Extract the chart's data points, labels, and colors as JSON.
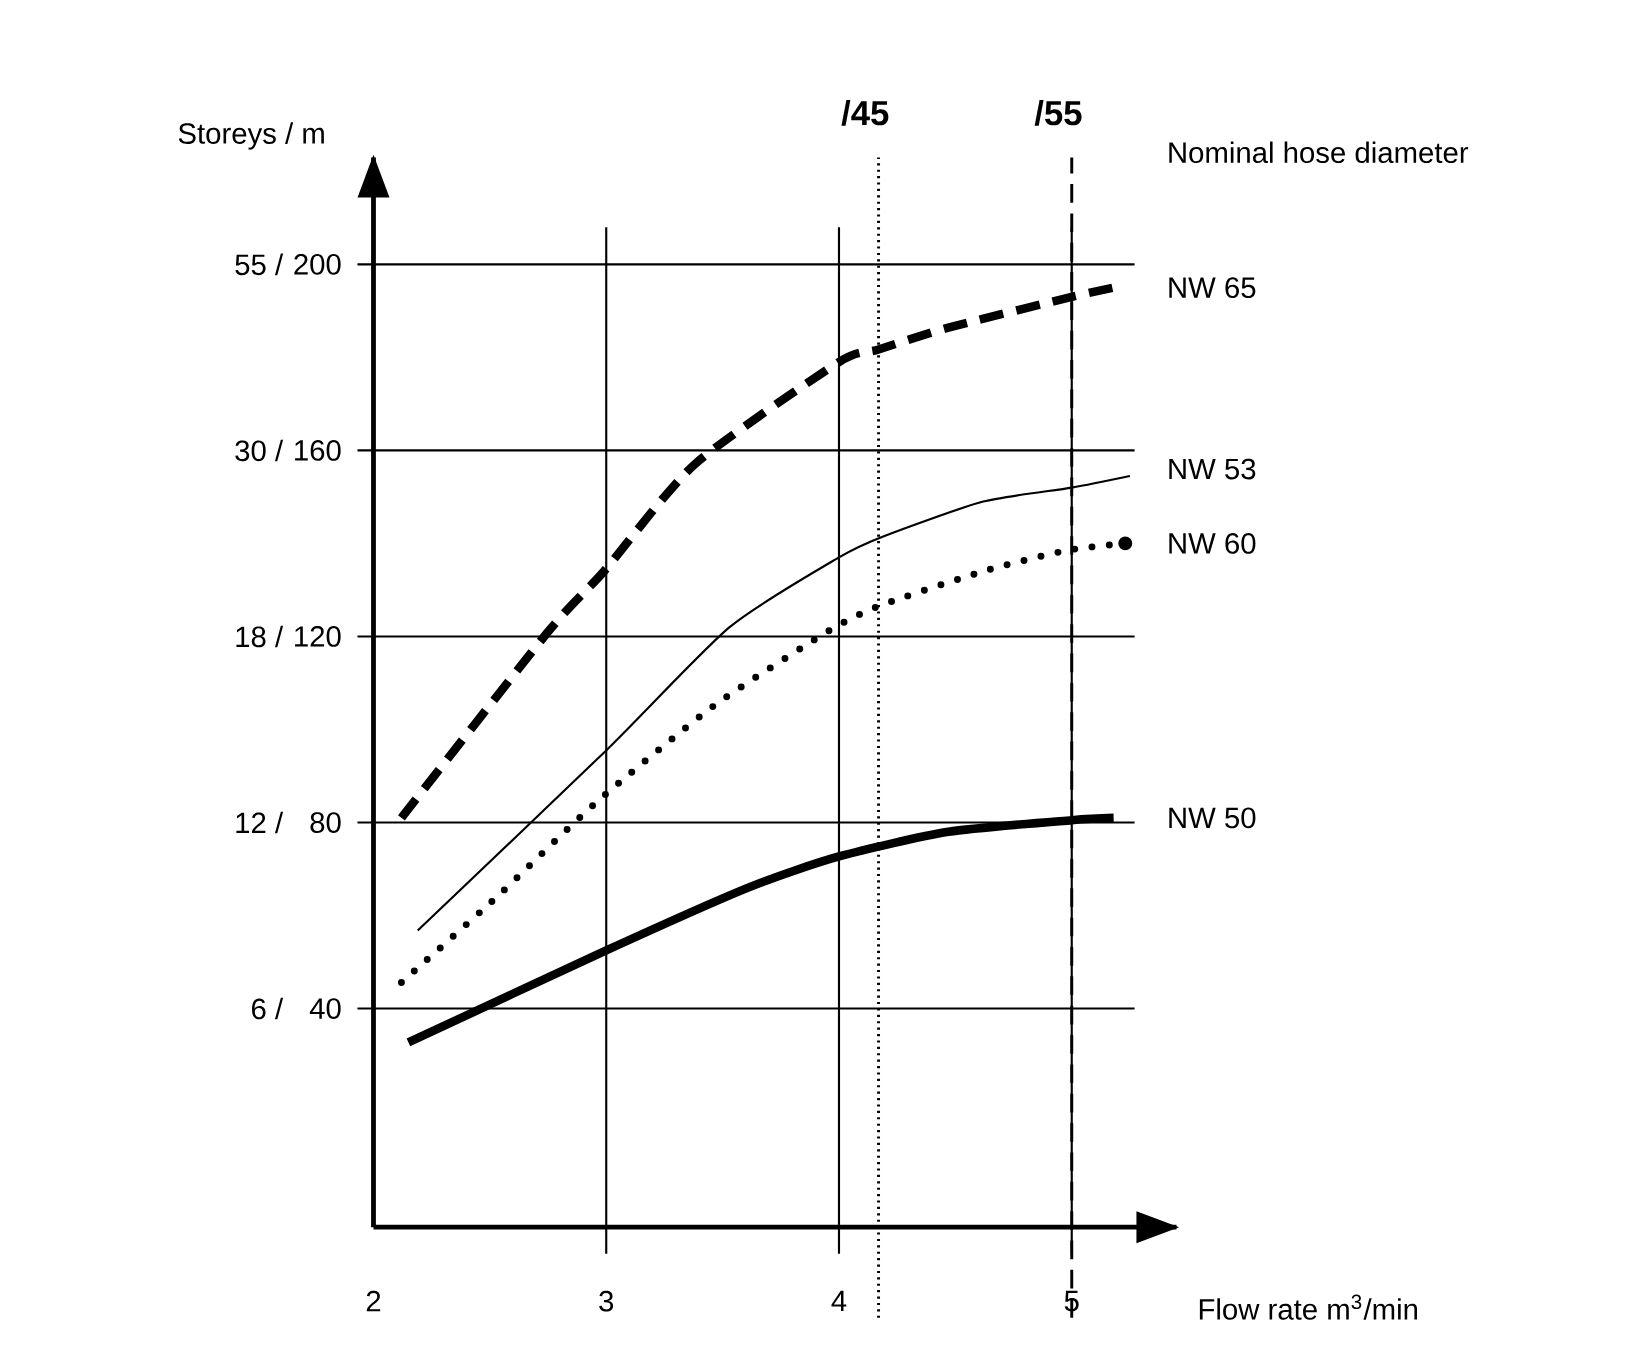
{
  "chart_data": {
    "type": "line",
    "xlabel": "Flow rate m$^{3}$/min",
    "ylabel": "Storeys  /   m",
    "annotations": [
      "Nominal hose diameter",
      {
        "text": "/45",
        "x": 4.17,
        "y": 223
      },
      {
        "text": "/55",
        "x": 5.0,
        "y": 223
      },
      "6  /",
      "12  /",
      "18  /",
      "30  /",
      "55  /"
    ],
    "xlim": [
      2,
      5.45
    ],
    "ylim": [
      -7,
      223
    ],
    "xticks": [
      2,
      3,
      4,
      5
    ],
    "yticks": [
      40,
      80,
      120,
      160,
      200
    ],
    "grid": true,
    "marker": "none",
    "series": [
      {
        "name": "NW 65",
        "color": "#000000",
        "line_style": "dashed",
        "x": [
          2.12,
          2.75,
          2.99,
          3.38,
          4.0,
          4.17,
          4.47,
          5.0,
          5.18
        ],
        "values": [
          81,
          121,
          134,
          157,
          179,
          181.7,
          186.4,
          193,
          195
        ]
      },
      {
        "name": "NW 53",
        "color": "#000000",
        "line_style": "solid",
        "x": [
          2.19,
          3.0,
          3.53,
          4.0,
          4.19,
          4.62,
          5.0,
          5.25
        ],
        "values": [
          56.8,
          95.5,
          122,
          137,
          141.5,
          149,
          152,
          154.5
        ]
      },
      {
        "name": "NW 60",
        "color": "#000000",
        "line_style": "dotted",
        "x": [
          2.12,
          2.53,
          2.95,
          3.46,
          3.95,
          4.17,
          4.62,
          4.98,
          5.23
        ],
        "values": [
          45.6,
          64,
          84,
          105,
          121,
          126.5,
          134,
          138.5,
          140
        ]
      },
      {
        "name": "NW 50",
        "color": "#000000",
        "line_style": "solid",
        "x": [
          2.15,
          3.0,
          3.61,
          4.0,
          4.47,
          5.0,
          5.18
        ],
        "values": [
          32.7,
          52.5,
          66,
          72.7,
          78,
          80.5,
          81
        ]
      }
    ],
    "ref_lines": [
      {
        "axis": "x",
        "value": 4.17,
        "line_style": "dotted"
      },
      {
        "axis": "x",
        "value": 5.0,
        "line_style": "dashed"
      }
    ]
  }
}
